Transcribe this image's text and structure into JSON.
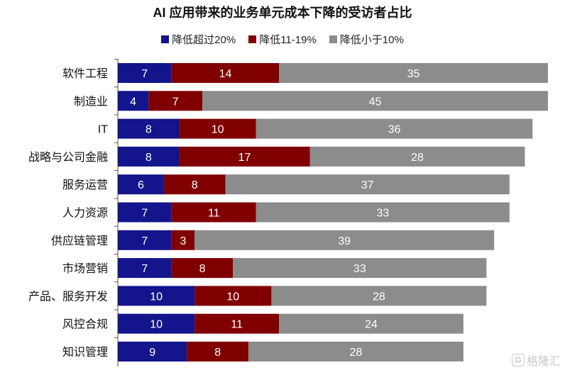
{
  "chart_data": {
    "type": "bar",
    "orientation": "horizontal",
    "stacked": true,
    "title": "AI 应用带来的业务单元成本下降的受访者占比",
    "categories": [
      "软件工程",
      "制造业",
      "IT",
      "战略与公司金融",
      "服务运营",
      "人力资源",
      "供应链管理",
      "市场营销",
      "产品、服务开发",
      "风控合规",
      "知识管理"
    ],
    "series": [
      {
        "name": "降低超过20%",
        "color": "#14148c",
        "values": [
          7,
          4,
          8,
          8,
          6,
          7,
          7,
          7,
          10,
          10,
          9
        ]
      },
      {
        "name": "降低11-19%",
        "color": "#800000",
        "values": [
          14,
          7,
          10,
          17,
          8,
          11,
          3,
          8,
          10,
          11,
          8
        ]
      },
      {
        "name": "降低小于10%",
        "color": "#8c8c8c",
        "values": [
          35,
          45,
          36,
          28,
          37,
          33,
          39,
          33,
          28,
          24,
          28
        ]
      }
    ],
    "legend_position": "top",
    "grid": false
  },
  "watermark": {
    "icon": "g-logo-icon",
    "text": "格隆汇"
  }
}
